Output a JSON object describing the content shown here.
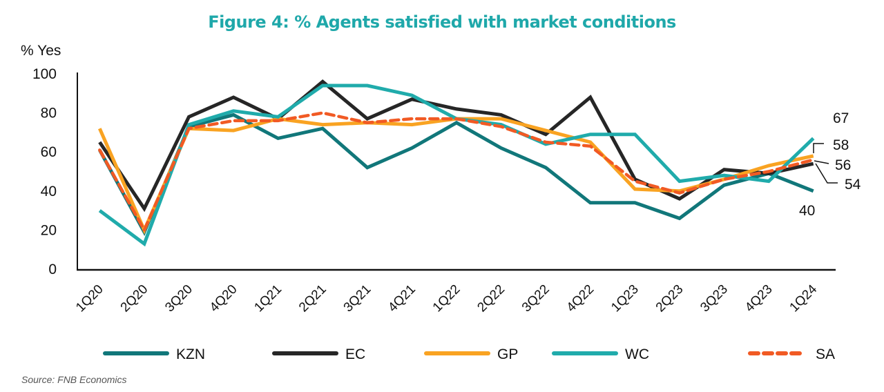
{
  "chart_data": {
    "type": "line",
    "title": "Figure 4: % Agents satisfied with market conditions",
    "ylabel": "% Yes",
    "xlabel": "",
    "ylim": [
      0,
      100
    ],
    "yticks": [
      "0",
      "20",
      "40",
      "60",
      "80",
      "100"
    ],
    "ytick_values": [
      0,
      20,
      40,
      60,
      80,
      100
    ],
    "grid": false,
    "legend_position": "bottom",
    "categories": [
      "1Q20",
      "2Q20",
      "3Q20",
      "4Q20",
      "1Q21",
      "2Q21",
      "3Q21",
      "4Q21",
      "1Q22",
      "2Q22",
      "3Q22",
      "4Q22",
      "1Q23",
      "2Q23",
      "3Q23",
      "4Q23",
      "1Q24"
    ],
    "series": [
      {
        "name": "KZN",
        "color": "#11777a",
        "dashed": false,
        "values": [
          61,
          19,
          73,
          79,
          67,
          72,
          52,
          62,
          75,
          62,
          52,
          34,
          34,
          26,
          43,
          49,
          40
        ]
      },
      {
        "name": "EC",
        "color": "#262626",
        "dashed": false,
        "values": [
          65,
          31,
          78,
          88,
          77,
          96,
          77,
          87,
          82,
          79,
          69,
          88,
          46,
          36,
          51,
          49,
          54
        ]
      },
      {
        "name": "GP",
        "color": "#f9a322",
        "dashed": false,
        "values": [
          72,
          20,
          72,
          71,
          77,
          74,
          75,
          74,
          77,
          77,
          71,
          65,
          41,
          40,
          46,
          53,
          58
        ]
      },
      {
        "name": "WC",
        "color": "#20abab",
        "dashed": false,
        "values": [
          30,
          13,
          74,
          81,
          78,
          94,
          94,
          89,
          77,
          74,
          64,
          69,
          69,
          45,
          48,
          45,
          67
        ]
      },
      {
        "name": "SA",
        "color": "#f15a24",
        "dashed": true,
        "values": [
          61,
          20,
          72,
          76,
          76,
          80,
          75,
          77,
          77,
          73,
          65,
          63,
          45,
          39,
          46,
          50,
          56
        ]
      }
    ],
    "end_labels": [
      {
        "series": "WC",
        "text": "67"
      },
      {
        "series": "GP",
        "text": "58"
      },
      {
        "series": "SA",
        "text": "56"
      },
      {
        "series": "EC",
        "text": "54"
      },
      {
        "series": "KZN",
        "text": "40"
      }
    ],
    "source": "Source: FNB Economics"
  }
}
